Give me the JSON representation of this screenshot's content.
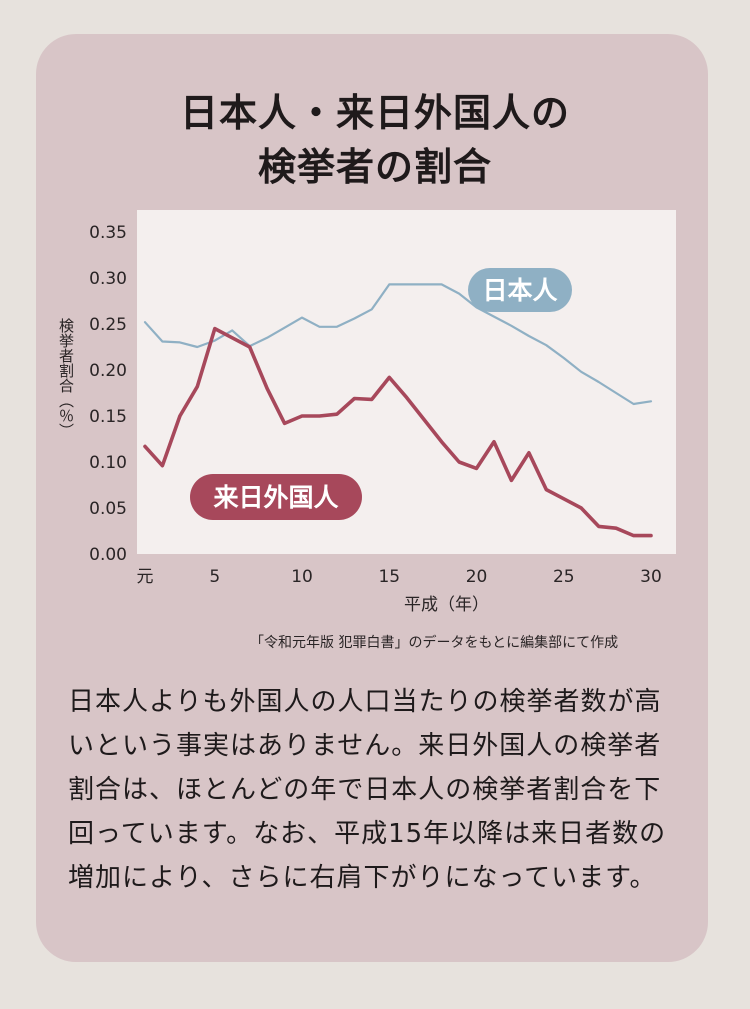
{
  "title_lines": [
    "日本人・来日外国人の",
    "検挙者の割合"
  ],
  "source_note": "「令和元年版 犯罪白書」のデータをもとに編集部にて作成",
  "body_text": "日本人よりも外国人の人口当たりの検挙者数が高いという事実はありません。来日外国人の検挙者割合は、ほとんどの年で日本人の検挙者割合を下回っています。なお、平成15年以降は来日者数の増加により、さらに右肩下がりになっています。",
  "colors": {
    "panel": "#d8c5c7",
    "plot_bg": "#f4efee",
    "japanese": "#8fb0c4",
    "foreign": "#a7485b"
  },
  "chart_data": {
    "type": "line",
    "title": "日本人・来日外国人の検挙者の割合",
    "xlabel": "平成（年）",
    "ylabel": "検挙者割合（％）",
    "xlim": [
      1,
      30
    ],
    "ylim": [
      0,
      0.35
    ],
    "x_ticks": [
      1,
      5,
      10,
      15,
      20,
      25,
      30
    ],
    "x_tick_labels": [
      "元",
      "5",
      "10",
      "15",
      "20",
      "25",
      "30"
    ],
    "y_ticks": [
      0,
      0.05,
      0.1,
      0.15,
      0.2,
      0.25,
      0.3,
      0.35
    ],
    "y_tick_labels": [
      "0.00",
      "0.05",
      "0.10",
      "0.15",
      "0.20",
      "0.25",
      "0.30",
      "0.35"
    ],
    "x": [
      1,
      2,
      3,
      4,
      5,
      6,
      7,
      8,
      9,
      10,
      11,
      12,
      13,
      14,
      15,
      16,
      17,
      18,
      19,
      20,
      21,
      22,
      23,
      24,
      25,
      26,
      27,
      28,
      29,
      30
    ],
    "series": [
      {
        "name": "日本人",
        "label_position": "top-right",
        "values": [
          0.252,
          0.231,
          0.23,
          0.225,
          0.232,
          0.243,
          0.226,
          0.235,
          0.246,
          0.257,
          0.247,
          0.247,
          0.256,
          0.266,
          0.293,
          0.293,
          0.293,
          0.293,
          0.283,
          0.268,
          0.258,
          0.248,
          0.237,
          0.227,
          0.213,
          0.198,
          0.187,
          0.175,
          0.163,
          0.166
        ]
      },
      {
        "name": "来日外国人",
        "label_position": "bottom-left",
        "values": [
          0.117,
          0.096,
          0.15,
          0.182,
          0.245,
          0.235,
          0.225,
          0.18,
          0.142,
          0.15,
          0.15,
          0.152,
          0.169,
          0.168,
          0.192,
          0.17,
          0.146,
          0.122,
          0.1,
          0.093,
          0.122,
          0.08,
          0.11,
          0.07,
          0.06,
          0.05,
          0.03,
          0.028,
          0.02,
          0.02
        ]
      }
    ]
  }
}
